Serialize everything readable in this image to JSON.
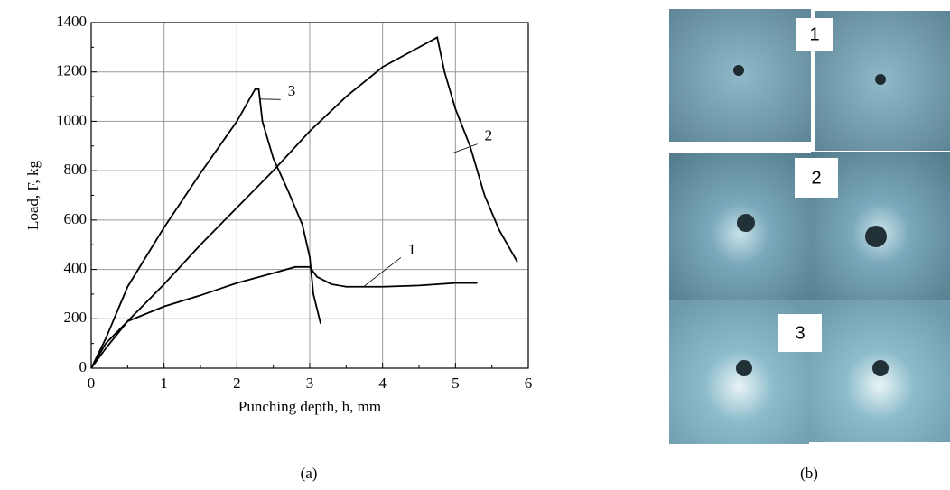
{
  "chart_data": {
    "type": "line",
    "xlabel": "Punching depth, h, mm",
    "ylabel": "Load, F, kg",
    "xlim": [
      0,
      6
    ],
    "xticks": [
      0,
      1,
      2,
      3,
      4,
      5,
      6
    ],
    "ylim": [
      0,
      1400
    ],
    "yticks": [
      0,
      200,
      400,
      600,
      800,
      1000,
      1200,
      1400
    ],
    "grid": true,
    "series": [
      {
        "name": "1",
        "color": "#000000",
        "x": [
          0,
          0.2,
          0.5,
          1,
          1.5,
          2,
          2.5,
          2.8,
          3,
          3.1,
          3.3,
          3.5,
          4,
          4.5,
          5,
          5.3
        ],
        "values": [
          0,
          100,
          190,
          250,
          295,
          345,
          385,
          410,
          410,
          370,
          340,
          330,
          330,
          335,
          345,
          345
        ]
      },
      {
        "name": "2",
        "color": "#000000",
        "x": [
          0,
          0.2,
          0.5,
          1,
          1.5,
          2,
          2.5,
          3,
          3.5,
          4,
          4.5,
          4.75,
          4.85,
          5,
          5.2,
          5.4,
          5.6,
          5.85
        ],
        "values": [
          0,
          80,
          190,
          340,
          500,
          650,
          800,
          960,
          1100,
          1220,
          1300,
          1340,
          1200,
          1050,
          900,
          700,
          560,
          430
        ]
      },
      {
        "name": "3",
        "color": "#000000",
        "x": [
          0,
          0.2,
          0.5,
          1,
          1.5,
          2,
          2.25,
          2.3,
          2.35,
          2.5,
          2.7,
          2.9,
          3,
          3.05,
          3.15
        ],
        "values": [
          0,
          120,
          330,
          570,
          790,
          1000,
          1130,
          1130,
          1000,
          850,
          720,
          580,
          450,
          300,
          180
        ]
      }
    ]
  },
  "panel_labels": [
    "(a)",
    "(b)"
  ],
  "photo_labels": [
    "1",
    "2",
    "3"
  ]
}
